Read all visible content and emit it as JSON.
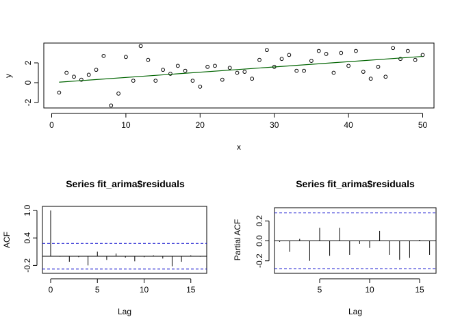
{
  "chart_data": [
    {
      "type": "scatter",
      "title": "",
      "xlabel": "x",
      "ylabel": "y",
      "xlim": [
        0,
        51
      ],
      "ylim": [
        -2.5,
        3.8
      ],
      "xticks": [
        "0",
        "10",
        "20",
        "30",
        "40",
        "50"
      ],
      "yticks": [
        "-2",
        "0",
        "2"
      ],
      "x": [
        1,
        2,
        3,
        4,
        5,
        6,
        7,
        8,
        9,
        10,
        11,
        12,
        13,
        14,
        15,
        16,
        17,
        18,
        19,
        20,
        21,
        22,
        23,
        24,
        25,
        26,
        27,
        28,
        29,
        30,
        31,
        32,
        33,
        34,
        35,
        36,
        37,
        38,
        39,
        40,
        41,
        42,
        43,
        44,
        45,
        46,
        47,
        48,
        49,
        50
      ],
      "y": [
        -1.0,
        1.0,
        0.6,
        0.3,
        0.8,
        1.3,
        2.7,
        -2.3,
        -1.1,
        2.6,
        0.2,
        3.7,
        2.3,
        0.2,
        1.3,
        0.9,
        1.7,
        1.2,
        0.2,
        -0.4,
        1.6,
        1.7,
        0.3,
        1.5,
        1.0,
        1.1,
        0.4,
        2.3,
        3.3,
        1.6,
        2.4,
        2.8,
        1.2,
        1.2,
        2.2,
        3.2,
        2.9,
        1.0,
        3.0,
        1.7,
        3.2,
        1.1,
        0.4,
        1.6,
        0.6,
        3.5,
        2.4,
        3.2,
        2.3,
        2.8
      ],
      "fit_line": {
        "x": [
          1,
          50
        ],
        "y": [
          0.05,
          2.65
        ],
        "color": "#006400"
      },
      "point_color": "#000000"
    },
    {
      "type": "bar",
      "title": "Series  fit_arima$residuals",
      "xlabel": "Lag",
      "ylabel": "ACF",
      "xlim": [
        0,
        16
      ],
      "ylim": [
        -0.28,
        1.0
      ],
      "xticks": [
        "0",
        "5",
        "10",
        "15"
      ],
      "yticks": [
        "-0.2",
        "0.4",
        "1.0"
      ],
      "lags": [
        0,
        1,
        2,
        3,
        4,
        5,
        6,
        7,
        8,
        9,
        10,
        11,
        12,
        13,
        14,
        15,
        16
      ],
      "values": [
        1.0,
        -0.01,
        -0.12,
        -0.02,
        -0.2,
        0.1,
        -0.08,
        0.06,
        -0.03,
        -0.11,
        -0.02,
        0.02,
        -0.05,
        -0.22,
        -0.12,
        0.02,
        -0.01
      ],
      "conf_limit": 0.28,
      "conf_color": "#0000cc"
    },
    {
      "type": "bar",
      "title": "Series  fit_arima$residuals",
      "xlabel": "Lag",
      "ylabel": "Partial ACF",
      "xlim": [
        1,
        16
      ],
      "ylim": [
        -0.3,
        0.32
      ],
      "xticks": [
        "5",
        "10",
        "15"
      ],
      "yticks": [
        "-0.2",
        "0.0",
        "0.2"
      ],
      "lags": [
        1,
        2,
        3,
        4,
        5,
        6,
        7,
        8,
        9,
        10,
        11,
        12,
        13,
        14,
        15,
        16
      ],
      "values": [
        -0.01,
        -0.11,
        0.02,
        -0.2,
        0.13,
        -0.15,
        0.13,
        -0.14,
        -0.03,
        -0.07,
        0.1,
        -0.14,
        -0.19,
        -0.17,
        0.01,
        -0.14
      ],
      "conf_limit": 0.28,
      "conf_color": "#0000cc"
    }
  ]
}
